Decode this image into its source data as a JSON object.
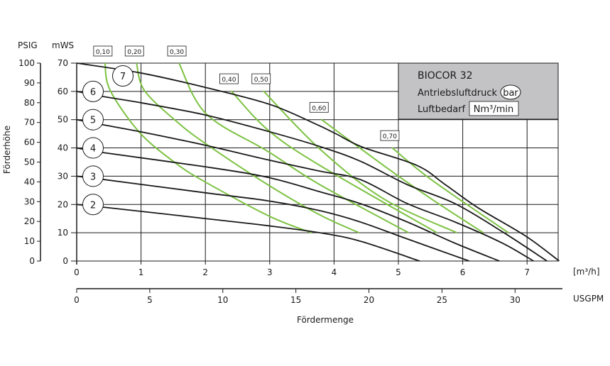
{
  "chart_data": {
    "type": "line",
    "title": "BIOCOR 32",
    "legend": {
      "title": "BIOCOR 32",
      "pressure_label": "Antriebsluftdruck",
      "pressure_unit": "bar",
      "air_label": "Luftbedarf",
      "air_unit": "Nm³/min",
      "placement": "top-right"
    },
    "xlabel": "Fördermenge",
    "x_unit": "[m³/h]",
    "x2_unit": "USGPM",
    "ylabel": "Förderhöhe",
    "y_unit": "mWS",
    "y2_unit": "PSIG",
    "xlim": [
      0,
      7.5
    ],
    "ylim": [
      0,
      70
    ],
    "x_ticks": [
      "0",
      "1",
      "2",
      "3",
      "4",
      "5",
      "6",
      "7"
    ],
    "x2_ticks": [
      "0",
      "5",
      "10",
      "15",
      "20",
      "25",
      "30"
    ],
    "x2_tick_values": [
      0,
      5,
      10,
      15,
      20,
      25,
      30
    ],
    "x2_per_x": 4.403,
    "y_ticks": [
      "0",
      "10",
      "20",
      "30",
      "40",
      "50",
      "60",
      "70"
    ],
    "y2_ticks": [
      "0",
      "10",
      "20",
      "30",
      "40",
      "50",
      "60",
      "70",
      "80",
      "90",
      "100"
    ],
    "grid": true,
    "series": [
      {
        "name": "2",
        "kind": "pressure_bar",
        "x": [
          0,
          0.43,
          2.01,
          2.97,
          3.78,
          4.41,
          5.33
        ],
        "y": [
          20,
          19,
          15,
          12.5,
          10,
          7,
          0
        ]
      },
      {
        "name": "3",
        "kind": "pressure_bar",
        "x": [
          0,
          0.43,
          2.01,
          2.97,
          3.78,
          4.41,
          5.14,
          6.1
        ],
        "y": [
          30,
          28.8,
          24.1,
          21.3,
          17.8,
          13.8,
          7.8,
          0
        ]
      },
      {
        "name": "4",
        "kind": "pressure_bar",
        "x": [
          0,
          0.43,
          2.01,
          2.97,
          3.78,
          4.41,
          5.14,
          5.88,
          6.57
        ],
        "y": [
          40,
          38.3,
          33.3,
          29.6,
          24.5,
          20.3,
          13.8,
          6.3,
          0
        ]
      },
      {
        "name": "5",
        "kind": "pressure_bar",
        "x": [
          0,
          0.43,
          1.02,
          2.01,
          2.97,
          3.78,
          4.41,
          5.14,
          5.88,
          6.62,
          7.1
        ],
        "y": [
          50,
          48.1,
          45.6,
          40.9,
          35.8,
          31.8,
          28.8,
          20.3,
          13.8,
          6.3,
          0
        ]
      },
      {
        "name": "6",
        "kind": "pressure_bar",
        "x": [
          0,
          0.43,
          1.02,
          2.01,
          2.97,
          3.78,
          4.41,
          5.14,
          5.88,
          6.62,
          7.31
        ],
        "y": [
          60,
          58.1,
          55.9,
          51.6,
          45.9,
          40.5,
          35.3,
          27,
          20.3,
          10.3,
          0
        ]
      },
      {
        "name": "7",
        "kind": "pressure_bar",
        "x": [
          0,
          1,
          2,
          3,
          3.72,
          4.03,
          4.44,
          5.29,
          5.73,
          6.24,
          6.98,
          7.5
        ],
        "y": [
          70,
          66.5,
          61.4,
          55.4,
          48.4,
          45,
          40.3,
          33.8,
          27,
          18.8,
          8.8,
          0
        ]
      }
    ],
    "air_series": [
      {
        "name": "0,10",
        "x": [
          0.44,
          0.52,
          0.98,
          1.54,
          2.01,
          3.0,
          3.65
        ],
        "y": [
          70,
          60.4,
          45.4,
          34.6,
          27.8,
          15.8,
          10
        ]
      },
      {
        "name": "0,20",
        "x": [
          0.93,
          1.05,
          1.54,
          2.01,
          2.97,
          3.78,
          4.39
        ],
        "y": [
          70,
          60.4,
          49.6,
          41.4,
          27,
          16.3,
          10
        ]
      },
      {
        "name": "0,30",
        "x": [
          1.59,
          2.01,
          2.97,
          3.78,
          5.16
        ],
        "y": [
          70,
          52.1,
          38.8,
          27,
          10
        ]
      },
      {
        "name": "0,40",
        "x": [
          2.4,
          2.97,
          3.78,
          5.6
        ],
        "y": [
          60.2,
          46.4,
          33.8,
          10
        ]
      },
      {
        "name": "0,50",
        "x": [
          2.9,
          3.78,
          4.77,
          5.91
        ],
        "y": [
          60.2,
          39.6,
          22,
          10
        ]
      },
      {
        "name": "0,60",
        "x": [
          3.8,
          4.77,
          5.51,
          6.32
        ],
        "y": [
          50.1,
          33.8,
          22,
          10
        ]
      },
      {
        "name": "0,70",
        "x": [
          4.9,
          5.51,
          6.71
        ],
        "y": [
          40.1,
          28.8,
          10
        ]
      }
    ],
    "colors": {
      "pressure": "#1a1a1a",
      "air": "#7dc242",
      "legend_bg": "#c3c3c5",
      "grid": "#1a1a1a"
    }
  }
}
